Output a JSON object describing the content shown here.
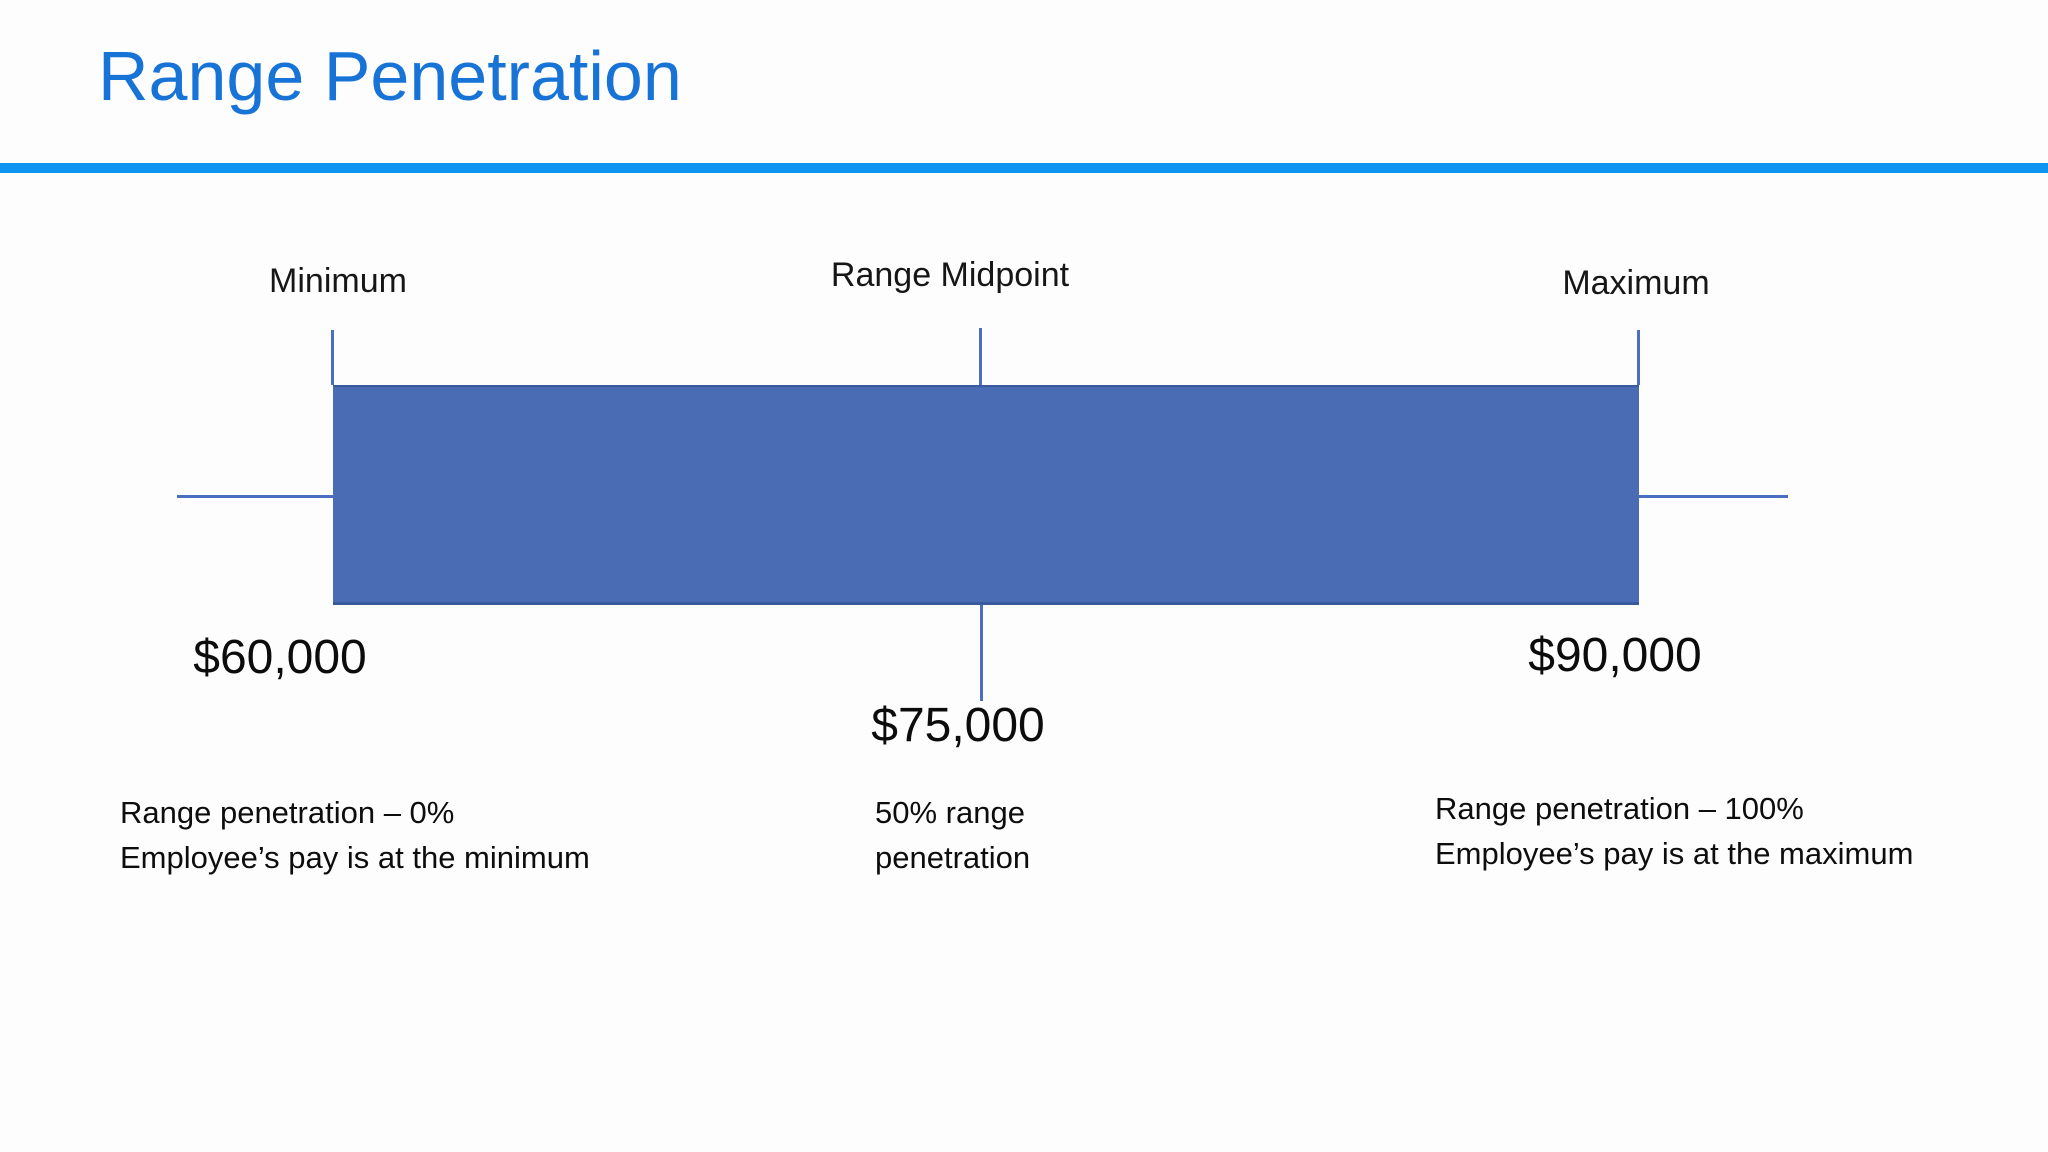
{
  "slide": {
    "title": "Range Penetration"
  },
  "diagram": {
    "markers": {
      "min": {
        "label": "Minimum",
        "value": "$60,000",
        "amount": 60000
      },
      "mid": {
        "label": "Range Midpoint",
        "value": "$75,000",
        "amount": 75000
      },
      "max": {
        "label": "Maximum",
        "value": "$90,000",
        "amount": 90000
      }
    },
    "notes": {
      "min": {
        "line1": "Range penetration – 0%",
        "line2": "Employee’s pay is at the minimum"
      },
      "mid": {
        "line1": "50% range",
        "line2": "penetration"
      },
      "max": {
        "line1": "Range penetration – 100%",
        "line2": "Employee’s pay is at the maximum"
      }
    },
    "colors": {
      "bar_fill": "#4a6cb4",
      "bar_border": "#3a5a9e",
      "line": "#4a6fc0",
      "title": "#1774d6",
      "rule": "#0e95f0"
    }
  }
}
